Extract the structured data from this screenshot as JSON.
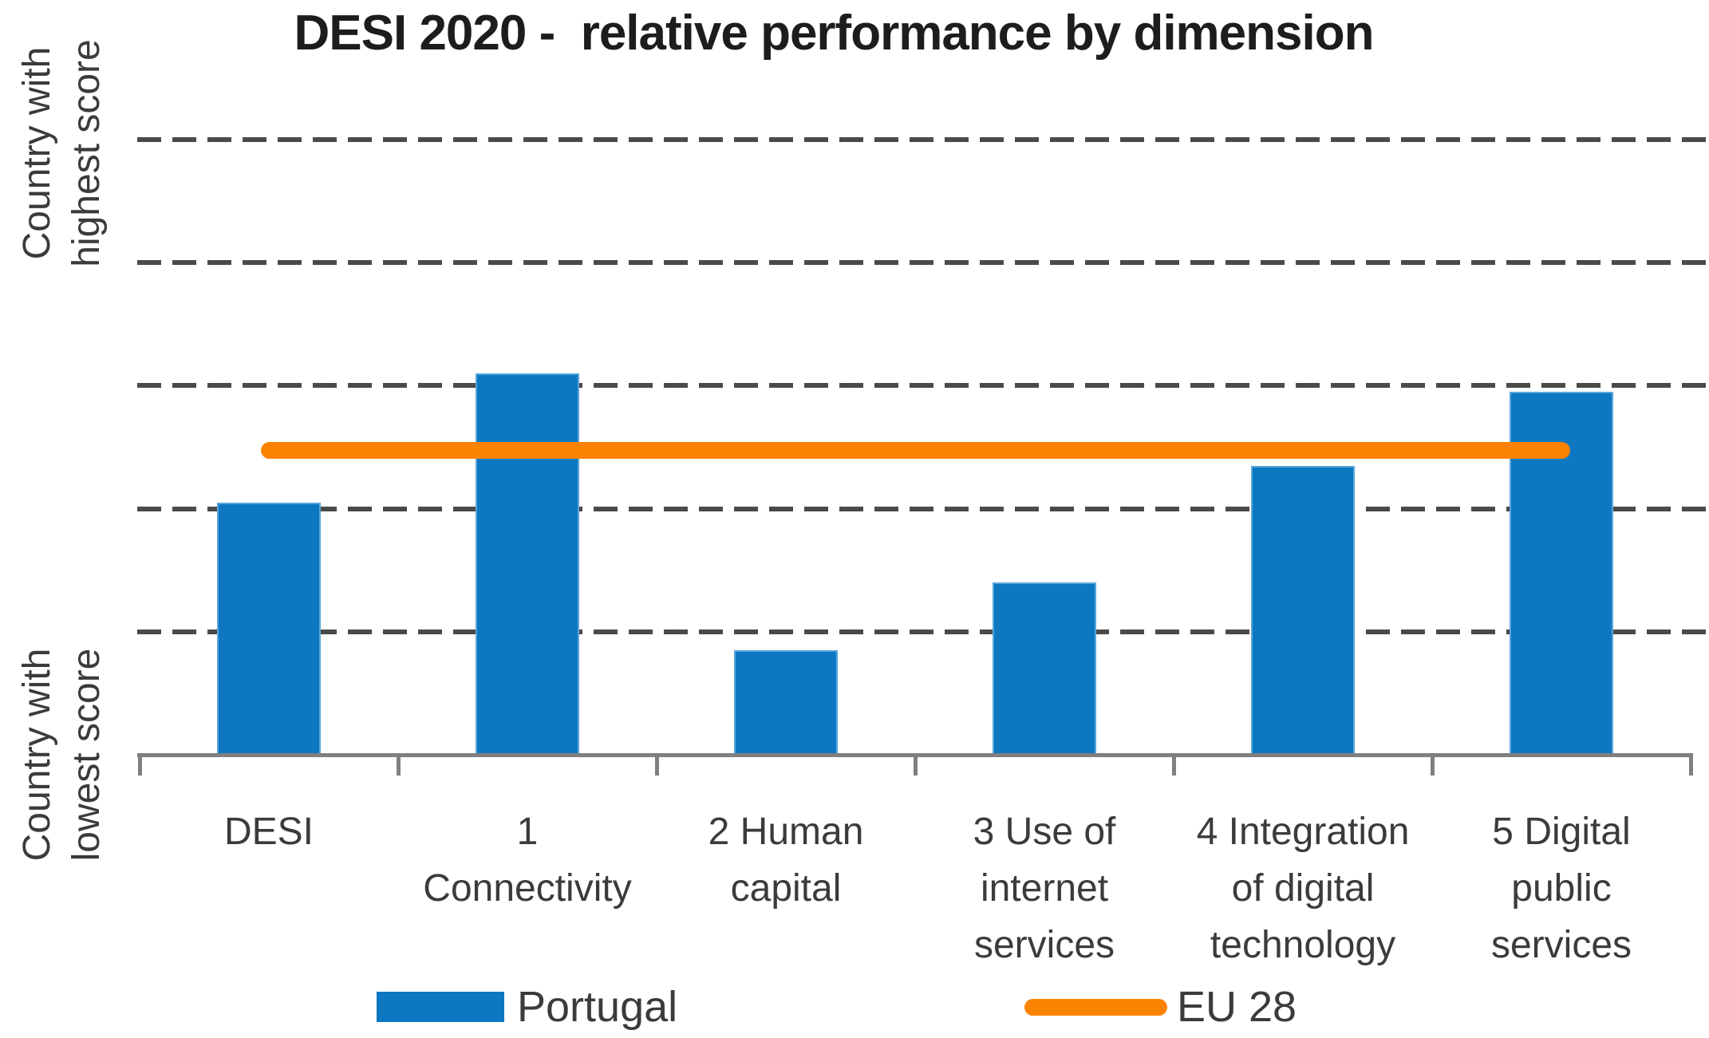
{
  "title": "DESI 2020 -  relative performance by dimension",
  "y_axis": {
    "top_label_line1": "Country with",
    "top_label_line2": "highest score",
    "bottom_label_line1": "Country with",
    "bottom_label_line2": "lowest score"
  },
  "legend": {
    "portugal_label": "Portugal",
    "eu_label": "EU 28"
  },
  "colors": {
    "bar_blue": "#0D78C1",
    "bar_edge_light_blue": "#57A6DB",
    "line_orange": "#FC8202",
    "gridline_gray": "#4A4A4A",
    "axis_gray": "#7F7F7F",
    "label_text": "#3B3B3B",
    "title_text": "#1D1D1D"
  },
  "chart_data": {
    "type": "bar",
    "title": "DESI 2020 -  relative performance by dimension",
    "categories": [
      "DESI",
      "1 Connectivity",
      "2 Human capital",
      "3 Use of internet services",
      "4 Integration of digital technology",
      "5 Digital public services"
    ],
    "category_label_lines": [
      [
        "DESI"
      ],
      [
        "1",
        "Connectivity"
      ],
      [
        "2 Human",
        "capital"
      ],
      [
        "3 Use of",
        "internet",
        "services"
      ],
      [
        "4 Integration",
        "of digital",
        "technology"
      ],
      [
        "5 Digital",
        "public",
        "services"
      ]
    ],
    "series": [
      {
        "name": "Portugal",
        "type": "bar",
        "color": "#0D78C1",
        "values": [
          0.41,
          0.62,
          0.17,
          0.28,
          0.47,
          0.59
        ]
      },
      {
        "name": "EU 28",
        "type": "line",
        "color": "#FC8202",
        "values": [
          0.495,
          0.495,
          0.495,
          0.495,
          0.495,
          0.495
        ]
      }
    ],
    "ylabel_top": "Country with highest score",
    "ylabel_bottom": "Country with lowest score",
    "ylim": [
      0,
      1
    ],
    "y_scale_note": "relative scale from country with lowest score (0, baseline) to country with highest score (1, top gridline); values estimated from dashed gridlines spaced 0.2 apart",
    "gridline_values": [
      0.2,
      0.4,
      0.6,
      0.8,
      1.0
    ],
    "grid_style": "dashed",
    "legend_position": "bottom"
  }
}
